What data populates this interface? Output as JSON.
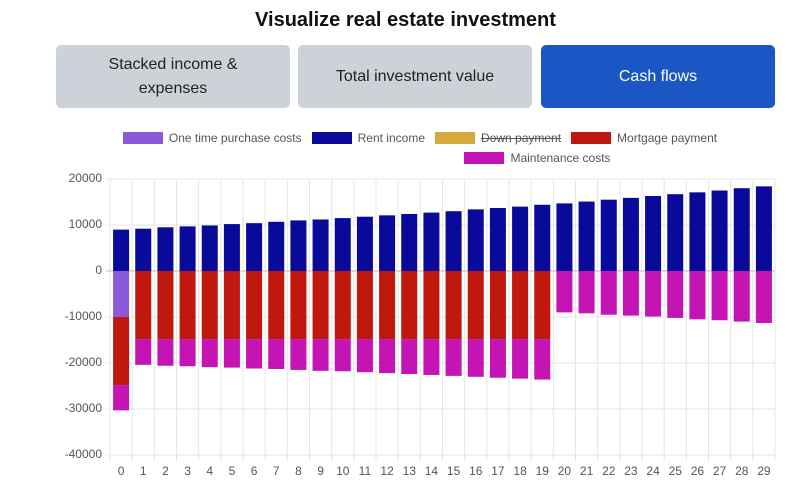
{
  "header": {
    "title": "Visualize real estate investment"
  },
  "tabs": [
    {
      "label": "Stacked income & expenses",
      "active": false
    },
    {
      "label": "Total investment value",
      "active": false
    },
    {
      "label": "Cash flows",
      "active": true
    }
  ],
  "chart_data": {
    "type": "bar",
    "stacked": true,
    "categories": [
      "0",
      "1",
      "2",
      "3",
      "4",
      "5",
      "6",
      "7",
      "8",
      "9",
      "10",
      "11",
      "12",
      "13",
      "14",
      "15",
      "16",
      "17",
      "18",
      "19",
      "20",
      "21",
      "22",
      "23",
      "24",
      "25",
      "26",
      "27",
      "28",
      "29"
    ],
    "series": [
      {
        "name": "One time purchase costs",
        "color": "#8a5ad8",
        "values": [
          -10000,
          null,
          null,
          null,
          null,
          null,
          null,
          null,
          null,
          null,
          null,
          null,
          null,
          null,
          null,
          null,
          null,
          null,
          null,
          null,
          null,
          null,
          null,
          null,
          null,
          null,
          null,
          null,
          null,
          null
        ]
      },
      {
        "name": "Rent income",
        "color": "#0a0a9a",
        "values": [
          9000,
          9200,
          9500,
          9700,
          9900,
          10200,
          10400,
          10700,
          11000,
          11200,
          11500,
          11800,
          12100,
          12400,
          12700,
          13000,
          13400,
          13700,
          14000,
          14400,
          14700,
          15100,
          15500,
          15900,
          16300,
          16700,
          17100,
          17500,
          18000,
          18400
        ]
      },
      {
        "name": "Down payment",
        "color": "#d4aa3c",
        "hidden": true,
        "values": [
          null,
          null,
          null,
          null,
          null,
          null,
          null,
          null,
          null,
          null,
          null,
          null,
          null,
          null,
          null,
          null,
          null,
          null,
          null,
          null,
          null,
          null,
          null,
          null,
          null,
          null,
          null,
          null,
          null,
          null
        ]
      },
      {
        "name": "Mortgage payment",
        "color": "#c0170f",
        "values": [
          -14800,
          -14800,
          -14800,
          -14800,
          -14800,
          -14800,
          -14800,
          -14800,
          -14800,
          -14800,
          -14800,
          -14800,
          -14800,
          -14800,
          -14800,
          -14800,
          -14800,
          -14800,
          -14800,
          -14800,
          null,
          null,
          null,
          null,
          null,
          null,
          null,
          null,
          null,
          null
        ]
      },
      {
        "name": "Maintenance costs",
        "color": "#c414b4",
        "values": [
          -5500,
          -5600,
          -5800,
          -5900,
          -6100,
          -6200,
          -6400,
          -6500,
          -6700,
          -6900,
          -7000,
          -7200,
          -7400,
          -7600,
          -7800,
          -8000,
          -8200,
          -8400,
          -8600,
          -8800,
          -9000,
          -9200,
          -9500,
          -9700,
          -9900,
          -10200,
          -10500,
          -10700,
          -11000,
          -11300
        ]
      }
    ],
    "ylim": [
      -40000,
      20000
    ],
    "yticks": [
      -40000,
      -30000,
      -20000,
      -10000,
      0,
      10000,
      20000
    ],
    "grid": true,
    "legend": "top"
  }
}
